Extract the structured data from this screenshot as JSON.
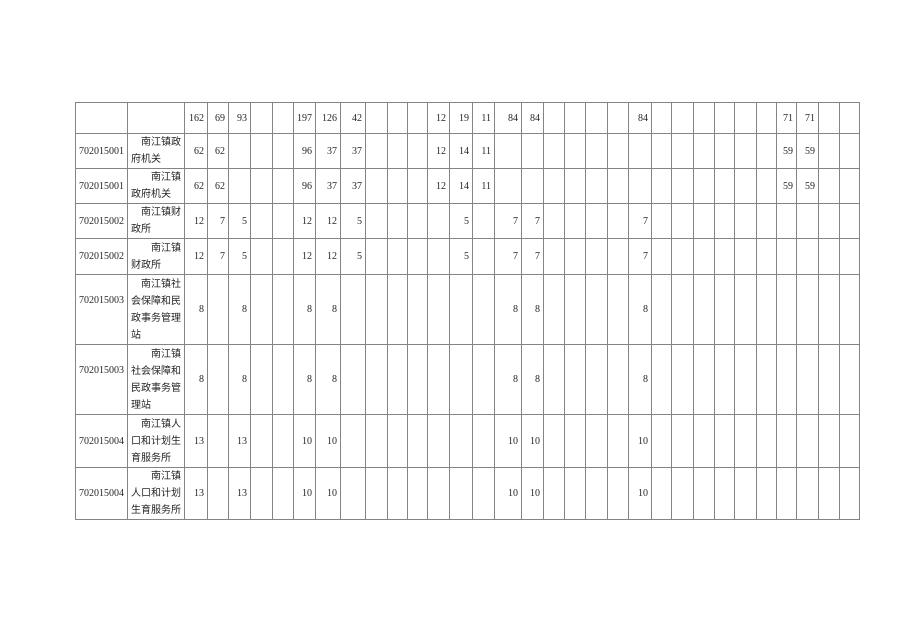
{
  "page": {
    "background": "#ffffff"
  },
  "table": {
    "grid_color": "#848484",
    "text_color": "#262626",
    "rows": [
      {
        "code": "",
        "name": "",
        "values": [
          "162",
          "69",
          "93",
          "",
          "",
          "197",
          "126",
          "42",
          "",
          "",
          "",
          "12",
          "19",
          "11",
          "84",
          "84",
          "",
          "",
          "",
          "",
          "84",
          "",
          "",
          "",
          "",
          "",
          "",
          "71",
          "71",
          "",
          ""
        ]
      },
      {
        "code": "702015001",
        "name": "　南江镇政\n府机关",
        "values": [
          "62",
          "62",
          "",
          "",
          "",
          "96",
          "37",
          "37",
          "",
          "",
          "",
          "12",
          "14",
          "11",
          "",
          "",
          "",
          "",
          "",
          "",
          "",
          "",
          "",
          "",
          "",
          "",
          "",
          "59",
          "59",
          "",
          ""
        ]
      },
      {
        "code": "702015001",
        "name": "　　南江镇\n政府机关",
        "values": [
          "62",
          "62",
          "",
          "",
          "",
          "96",
          "37",
          "37",
          "",
          "",
          "",
          "12",
          "14",
          "11",
          "",
          "",
          "",
          "",
          "",
          "",
          "",
          "",
          "",
          "",
          "",
          "",
          "",
          "59",
          "59",
          "",
          ""
        ]
      },
      {
        "code": "702015002",
        "name": "　南江镇财\n政所",
        "values": [
          "12",
          "7",
          "5",
          "",
          "",
          "12",
          "12",
          "5",
          "",
          "",
          "",
          "",
          "5",
          "",
          "7",
          "7",
          "",
          "",
          "",
          "",
          "7",
          "",
          "",
          "",
          "",
          "",
          "",
          "",
          "",
          "",
          ""
        ]
      },
      {
        "code": "702015002",
        "name": "　　南江镇\n财政所",
        "values": [
          "12",
          "7",
          "5",
          "",
          "",
          "12",
          "12",
          "5",
          "",
          "",
          "",
          "",
          "5",
          "",
          "7",
          "7",
          "",
          "",
          "",
          "",
          "7",
          "",
          "",
          "",
          "",
          "",
          "",
          "",
          "",
          "",
          ""
        ]
      },
      {
        "code": "702015003",
        "name": "　南江镇社\n会保障和民\n政事务管理\n站",
        "values": [
          "8",
          "",
          "8",
          "",
          "",
          "8",
          "8",
          "",
          "",
          "",
          "",
          "",
          "",
          "",
          "8",
          "8",
          "",
          "",
          "",
          "",
          "8",
          "",
          "",
          "",
          "",
          "",
          "",
          "",
          "",
          "",
          ""
        ]
      },
      {
        "code": "702015003",
        "name": "　　南江镇\n社会保障和\n民政事务管\n理站",
        "values": [
          "8",
          "",
          "8",
          "",
          "",
          "8",
          "8",
          "",
          "",
          "",
          "",
          "",
          "",
          "",
          "8",
          "8",
          "",
          "",
          "",
          "",
          "8",
          "",
          "",
          "",
          "",
          "",
          "",
          "",
          "",
          "",
          ""
        ]
      },
      {
        "code": "702015004",
        "name": "　南江镇人\n口和计划生\n育服务所",
        "values": [
          "13",
          "",
          "13",
          "",
          "",
          "10",
          "10",
          "",
          "",
          "",
          "",
          "",
          "",
          "",
          "10",
          "10",
          "",
          "",
          "",
          "",
          "10",
          "",
          "",
          "",
          "",
          "",
          "",
          "",
          "",
          "",
          ""
        ]
      },
      {
        "code": "702015004",
        "name": "　　南江镇\n人口和计划\n生育服务所",
        "values": [
          "13",
          "",
          "13",
          "",
          "",
          "10",
          "10",
          "",
          "",
          "",
          "",
          "",
          "",
          "",
          "10",
          "10",
          "",
          "",
          "",
          "",
          "10",
          "",
          "",
          "",
          "",
          "",
          "",
          "",
          "",
          "",
          ""
        ]
      }
    ]
  }
}
